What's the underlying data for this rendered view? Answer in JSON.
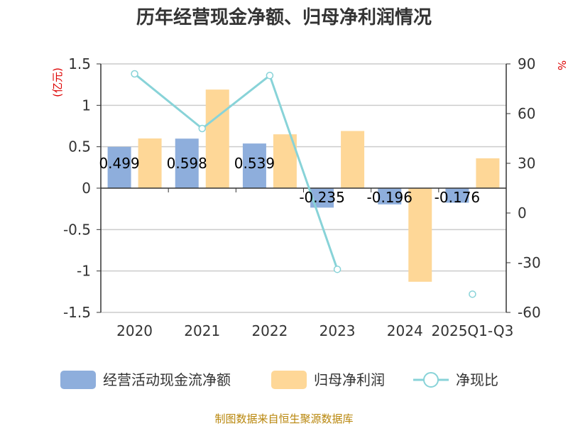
{
  "chart_data": {
    "type": "bar+line",
    "title": "历年经营现金净额、归母净利润情况",
    "categories": [
      "2020",
      "2021",
      "2022",
      "2023",
      "2024",
      "2025Q1-Q3"
    ],
    "series": [
      {
        "name": "经营活动现金流净额",
        "type": "bar",
        "axis": "left",
        "color": "#8eaedc",
        "values": [
          0.499,
          0.598,
          0.539,
          -0.235,
          -0.196,
          -0.176
        ],
        "labels": [
          "0.499",
          "0.598",
          "0.539",
          "-0.235",
          "-0.196",
          "-0.176"
        ]
      },
      {
        "name": "归母净利润",
        "type": "bar",
        "axis": "left",
        "color": "#fed797",
        "values": [
          0.6,
          1.19,
          0.65,
          0.69,
          -1.13,
          0.36
        ]
      },
      {
        "name": "净现比",
        "type": "line",
        "axis": "right",
        "color": "#88d3d8",
        "values": [
          84,
          51,
          83,
          -34,
          null,
          -49
        ]
      }
    ],
    "yleft": {
      "label": "(亿元)",
      "min": -1.5,
      "max": 1.5,
      "ticks": [
        1.5,
        1,
        0.5,
        0,
        -0.5,
        -1,
        -1.5
      ],
      "tick_labels": [
        "1.5",
        "1",
        "0.5",
        "0",
        "-0.5",
        "-1",
        "-1.5"
      ]
    },
    "yright": {
      "label": "%",
      "min": -60,
      "max": 90,
      "ticks": [
        90,
        60,
        30,
        0,
        -30,
        -60
      ],
      "tick_labels": [
        "90",
        "60",
        "30",
        "0",
        "-30",
        "-60"
      ]
    },
    "grid": true,
    "legend": "bottom"
  },
  "source": "制图数据来自恒生聚源数据库"
}
